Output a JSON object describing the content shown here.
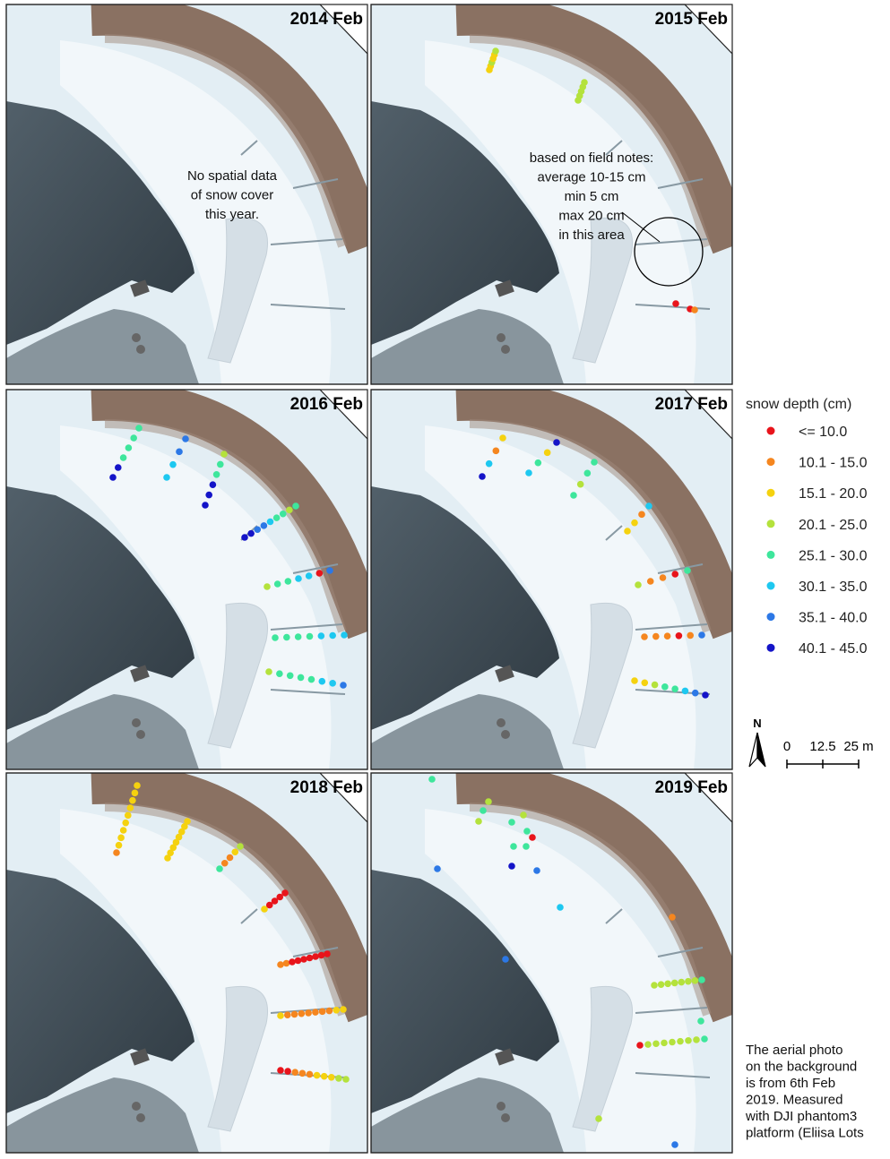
{
  "panels": [
    {
      "title": "2014 Feb",
      "note_lines": [
        "No spatial data",
        "of snow cover",
        "this year."
      ]
    },
    {
      "title": "2015 Feb",
      "note_lines": [
        "based on field notes:",
        "average 10-15 cm",
        "min 5 cm",
        "max 20 cm",
        "in this area"
      ]
    },
    {
      "title": "2016 Feb"
    },
    {
      "title": "2017 Feb"
    },
    {
      "title": "2018 Feb"
    },
    {
      "title": "2019 Feb"
    }
  ],
  "legend": {
    "title": "snow depth (cm)",
    "classes": [
      {
        "label": "<= 10.0",
        "color": "#e8141b"
      },
      {
        "label": "10.1 - 15.0",
        "color": "#f5861f"
      },
      {
        "label": "15.1 - 20.0",
        "color": "#f5d20f"
      },
      {
        "label": "20.1 - 25.0",
        "color": "#b4e23c"
      },
      {
        "label": "25.1 - 30.0",
        "color": "#3ee69c"
      },
      {
        "label": "30.1 - 35.0",
        "color": "#1ec8f0"
      },
      {
        "label": "35.1 - 40.0",
        "color": "#2c78e6"
      },
      {
        "label": "40.1 - 45.0",
        "color": "#1414c8"
      }
    ]
  },
  "north_label": "N",
  "scale_labels": [
    "0",
    "12.5",
    "25 m"
  ],
  "caption_lines": [
    "The aerial photo",
    "on the background",
    "is from 6th Feb",
    "2019. Measured",
    "with DJI phantom3",
    "platform (Eliisa Lots"
  ]
}
